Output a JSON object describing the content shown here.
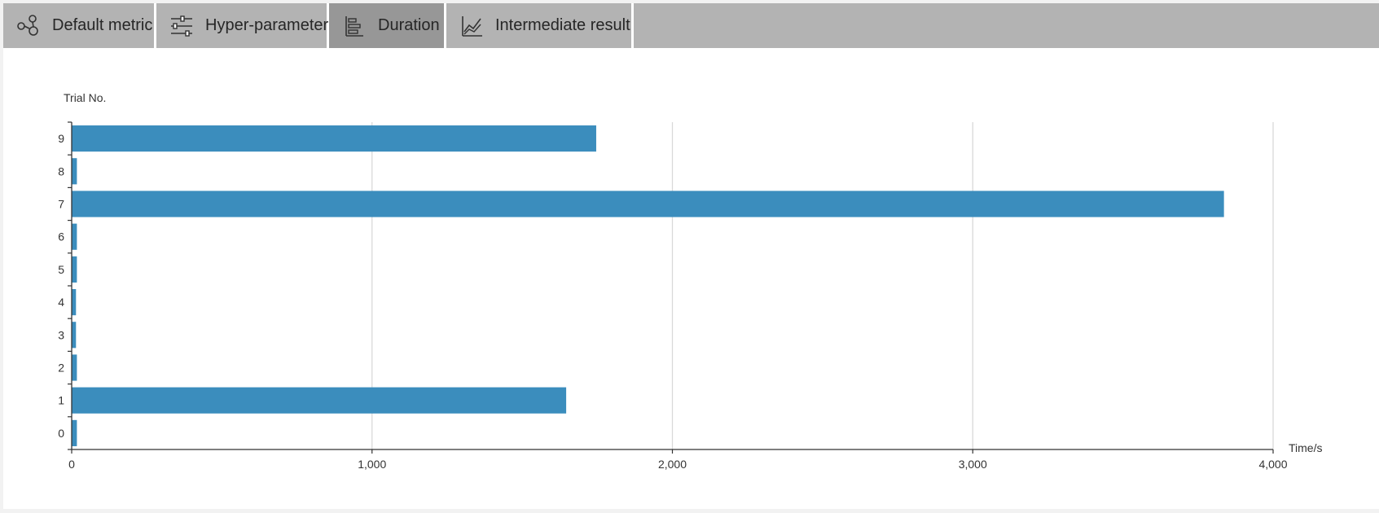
{
  "tabs": [
    {
      "label": "Default metric",
      "icon": "scatter-nodes-icon",
      "active": false
    },
    {
      "label": "Hyper-parameter",
      "icon": "sliders-icon",
      "active": false
    },
    {
      "label": "Duration",
      "icon": "bar-chart-icon",
      "active": true
    },
    {
      "label": "Intermediate result",
      "icon": "line-chart-icon",
      "active": false
    }
  ],
  "colors": {
    "bar": "#3b8dbd",
    "grid": "#d9d9d9",
    "axis": "#333333",
    "tab_bg": "#b3b3b3",
    "tab_active_bg": "#979797"
  },
  "chart_data": {
    "type": "bar",
    "orientation": "horizontal",
    "ylabel": "Trial No.",
    "xlabel": "Time/s",
    "categories": [
      "0",
      "1",
      "2",
      "3",
      "4",
      "5",
      "6",
      "7",
      "8",
      "9"
    ],
    "values": [
      16,
      1645,
      16,
      13,
      13,
      16,
      16,
      3835,
      16,
      1745
    ],
    "xlim": [
      0,
      4000
    ],
    "xticks": [
      0,
      1000,
      2000,
      3000,
      4000
    ],
    "xtick_labels": [
      "0",
      "1,000",
      "2,000",
      "3,000",
      "4,000"
    ],
    "grid": true
  }
}
